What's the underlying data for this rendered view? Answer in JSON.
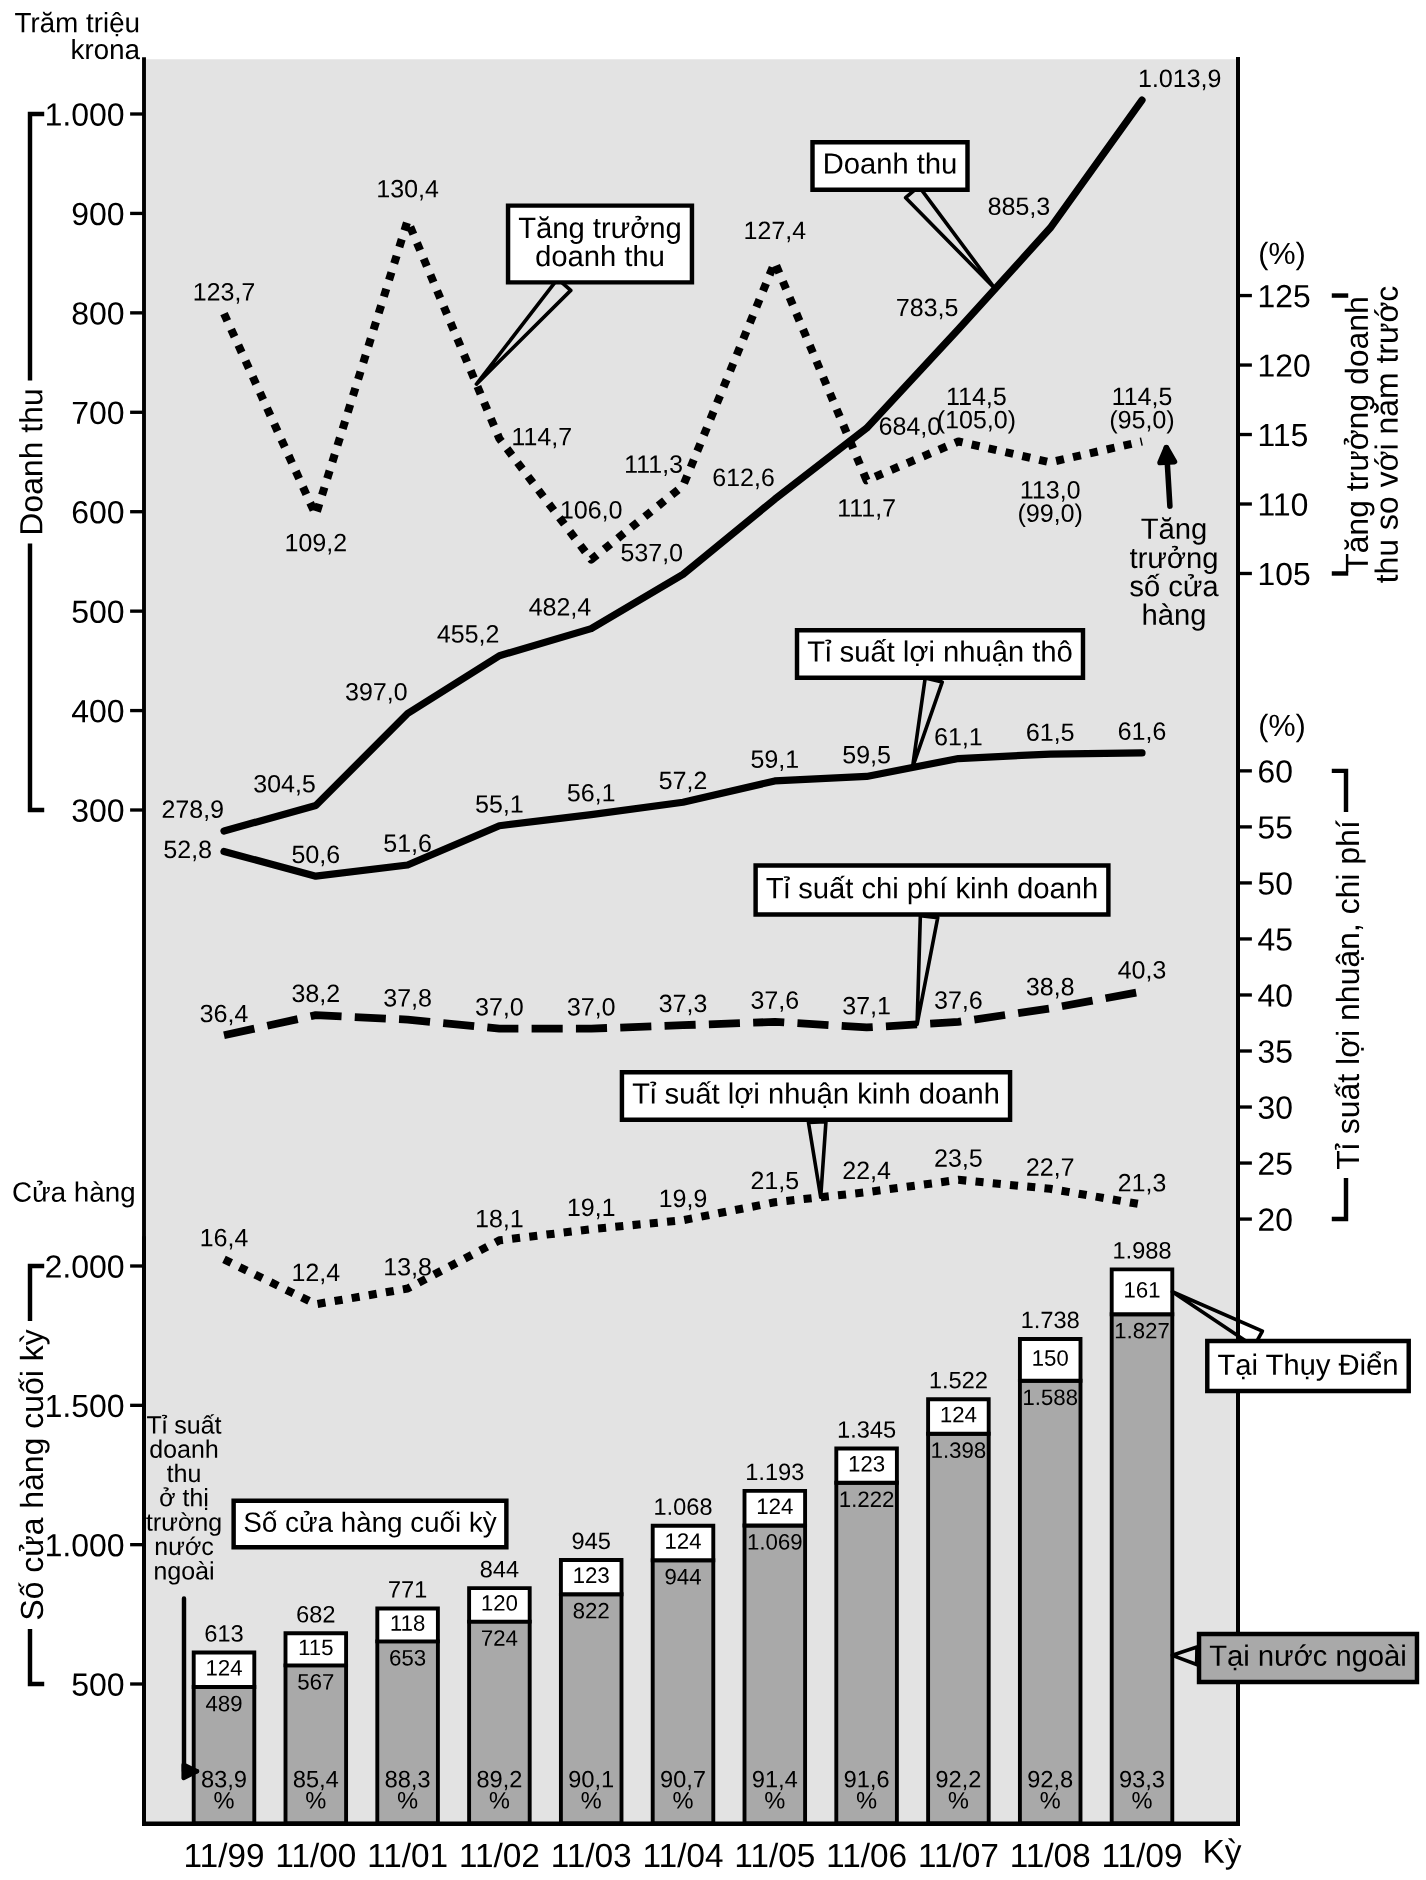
{
  "chart_data": [
    {
      "type": "line",
      "categories": [
        null,
        null,
        null,
        null,
        null,
        null,
        null,
        null,
        null,
        null,
        null
      ],
      "ylabel": "Doanh thu",
      "ylim": [
        -720,
        1055
      ],
      "yticks": [
        300,
        400,
        500,
        600,
        700,
        800,
        900,
        {
          "value": 1000,
          "label": "1.000"
        }
      ],
      "y2label": "Tăng trưởng doanh\nthu so với năm trước",
      "y2lim": [
        15,
        142
      ],
      "y2ticks": [
        105,
        110,
        115,
        120,
        125
      ],
      "y3label": "Tỉ suất lợi nhuận, chi phí",
      "y3lim": [
        -34,
        123.5
      ],
      "y3ticks": [
        20,
        25,
        30,
        35,
        40,
        45,
        50,
        55,
        60
      ],
      "series": [
        {
          "name": "Doanh thu",
          "color": "#000000",
          "line_style": "solid",
          "values": [
            278.9,
            304.5,
            397.0,
            455.2,
            482.4,
            537.0,
            612.6,
            684.0,
            783.5,
            885.3,
            1013.9
          ],
          "value_labels": [
            "278,9",
            "304,5",
            "397,0",
            "455,2",
            "482,4",
            "537,0",
            "612,6",
            "684,0",
            "783,5",
            "885,3",
            "1.013,9"
          ]
        },
        {
          "name": "Tăng trưởng\ndoanh thu",
          "axis": "y2",
          "color": "#000000",
          "line_style": "dotted",
          "values": [
            123.7,
            109.2,
            130.4,
            114.7,
            106.0,
            111.3,
            127.4,
            111.7,
            114.5,
            113.0,
            114.5
          ],
          "value_labels": [
            "123,7",
            "109,2",
            "130,4",
            "114,7",
            "106,0",
            "111,3",
            "127,4",
            "111,7",
            "114,5\n(105,0)",
            "113,0\n(99,0)",
            "114,5\n(95,0)"
          ]
        },
        {
          "name": "Tỉ suất lợi nhuận thô",
          "axis": "y3",
          "color": "#000000",
          "line_style": "solid",
          "values": [
            52.8,
            50.6,
            51.6,
            55.1,
            56.1,
            57.2,
            59.1,
            59.5,
            61.1,
            61.5,
            61.6
          ],
          "value_labels": [
            "52,8",
            "50,6",
            "51,6",
            "55,1",
            "56,1",
            "57,2",
            "59,1",
            "59,5",
            "61,1",
            "61,5",
            "61,6"
          ]
        },
        {
          "name": "Tỉ suất chi phí kinh doanh",
          "axis": "y3",
          "color": "#000000",
          "line_style": "dashed",
          "values": [
            36.4,
            38.2,
            37.8,
            37.0,
            37.0,
            37.3,
            37.6,
            37.1,
            37.6,
            38.8,
            40.3
          ],
          "value_labels": [
            "36,4",
            "38,2",
            "37,8",
            "37,0",
            "37,0",
            "37,3",
            "37,6",
            "37,1",
            "37,6",
            "38,8",
            "40,3"
          ]
        },
        {
          "name": "Tỉ suất lợi nhuận kinh doanh",
          "axis": "y3",
          "color": "#000000",
          "line_style": "dotted",
          "values": [
            16.4,
            12.4,
            13.8,
            18.1,
            19.1,
            19.9,
            21.5,
            22.4,
            23.5,
            22.7,
            21.3
          ],
          "value_labels": [
            "16,4",
            "12,4",
            "13,8",
            "18,1",
            "19,1",
            "19,9",
            "21,5",
            "22,4",
            "23,5",
            "22,7",
            "21,3"
          ]
        }
      ],
      "annotations": [
        "Trăm triệu\nkrona",
        "(%)",
        "Tăng\ntrưởng\nsố cửa\nhàng",
        "(%)"
      ]
    },
    {
      "type": "bar",
      "categories": [
        "11/99",
        "11/00",
        "11/01",
        "11/02",
        "11/03",
        "11/04",
        "11/05",
        "11/06",
        "11/07",
        "11/08",
        "11/09"
      ],
      "xlabel": "Kỳ",
      "ylabel": "Số cửa hàng cuối kỳ",
      "ylim": [
        0,
        2100
      ],
      "yticks": [
        500,
        {
          "value": 1000,
          "label": "1.000"
        },
        {
          "value": 1500,
          "label": "1.500"
        },
        {
          "value": 2000,
          "label": "2.000"
        }
      ],
      "stacked": true,
      "series": [
        {
          "name": "Tại nước ngoài",
          "color": "#a9a9a9",
          "values": [
            489,
            567,
            653,
            724,
            822,
            944,
            1069,
            1222,
            1398,
            1588,
            1827
          ],
          "value_labels": [
            "489",
            "567",
            "653",
            "724",
            "822",
            "944",
            "1.069",
            "1.222",
            "1.398",
            "1.588",
            "1.827"
          ]
        },
        {
          "name": "Tại Thụy Điển",
          "color": "#ffffff",
          "values": [
            124,
            115,
            118,
            120,
            123,
            124,
            124,
            123,
            124,
            150,
            161
          ],
          "value_labels": [
            "124",
            "115",
            "118",
            "120",
            "123",
            "124",
            "124",
            "123",
            "124",
            "150",
            "161"
          ]
        }
      ],
      "totals": [
        "613",
        "682",
        "771",
        "844",
        "945",
        "1.068",
        "1.193",
        "1.345",
        "1.522",
        "1.738",
        "1.988"
      ],
      "annotations": [
        "Cửa hàng",
        "Tỉ suất\ndoanh\nthu\nở thị\ntrường\nnước\nngoài",
        "Số cửa hàng cuối kỳ",
        {
          "text": "83,9\n%",
          "x": "11/99",
          "y": 0
        },
        {
          "text": "85,4\n%",
          "x": "11/00",
          "y": 0
        },
        {
          "text": "88,3\n%",
          "x": "11/01",
          "y": 0
        },
        {
          "text": "89,2\n%",
          "x": "11/02",
          "y": 0
        },
        {
          "text": "90,1\n%",
          "x": "11/03",
          "y": 0
        },
        {
          "text": "90,7\n%",
          "x": "11/04",
          "y": 0
        },
        {
          "text": "91,4\n%",
          "x": "11/05",
          "y": 0
        },
        {
          "text": "91,6\n%",
          "x": "11/06",
          "y": 0
        },
        {
          "text": "92,2\n%",
          "x": "11/07",
          "y": 0
        },
        {
          "text": "92,8\n%",
          "x": "11/08",
          "y": 0
        },
        {
          "text": "93,3\n%",
          "x": "11/09",
          "y": 0
        }
      ]
    }
  ]
}
